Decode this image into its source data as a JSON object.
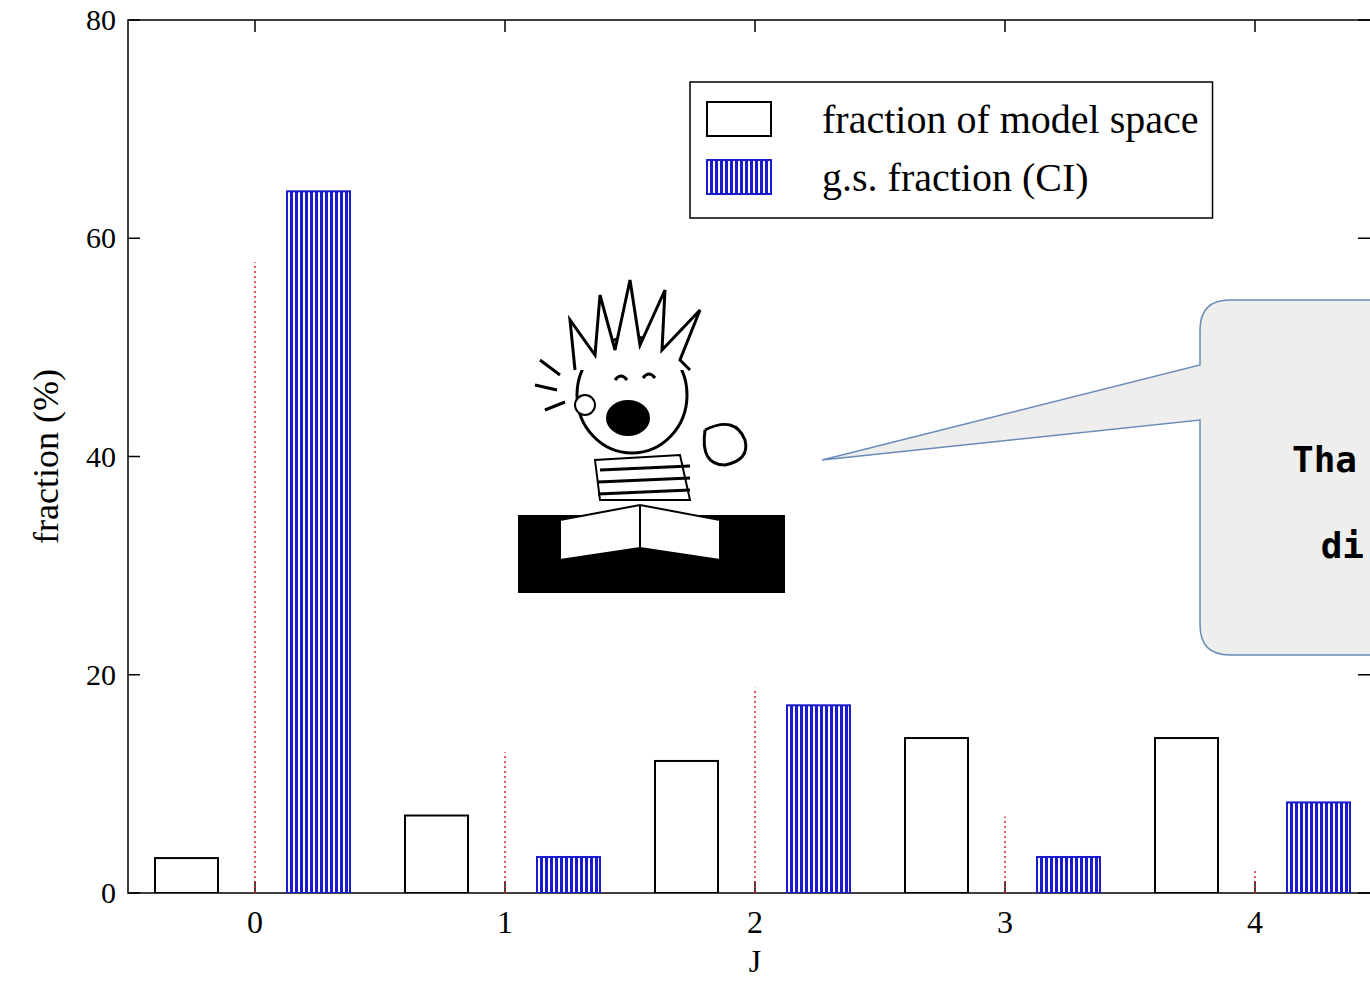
{
  "chart_data": {
    "type": "bar",
    "x_label": "J",
    "y_label": "fraction (%)",
    "categories": [
      "0",
      "1",
      "2",
      "3",
      "4"
    ],
    "series": [
      {
        "name": "fraction of model space",
        "color": "#ffffff",
        "values": [
          3.2,
          7.1,
          12.1,
          14.2,
          14.2
        ]
      },
      {
        "name": "g.s. fraction (CI)",
        "color": "#1a1ad0",
        "values": [
          64.3,
          3.3,
          17.2,
          3.3,
          8.3
        ]
      },
      {
        "type": "stem",
        "color": "#e0202a",
        "line_style": "dotted",
        "values": [
          57.8,
          12.9,
          18.8,
          7.0,
          2.1
        ]
      }
    ],
    "ylim": [
      0,
      80
    ],
    "yticks": [
      0,
      20,
      40,
      60,
      80
    ],
    "legend": "upper right",
    "annotations": [
      "Tha",
      "di"
    ]
  }
}
